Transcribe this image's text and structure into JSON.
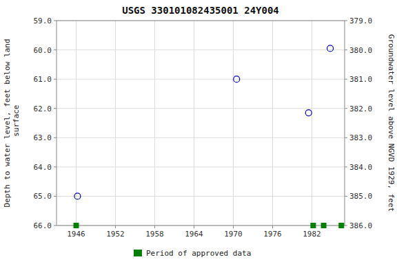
{
  "chart_data": {
    "type": "scatter",
    "title": "USGS 330101082435001 24Y004",
    "ylabel": "Depth to water level, feet below land\n surface",
    "y2label": "Groundwater level above NGVD 1929, feet",
    "xlim": [
      1943,
      1987
    ],
    "xticks": [
      1946,
      1952,
      1958,
      1964,
      1970,
      1976,
      1982
    ],
    "ylim": [
      66.0,
      59.0
    ],
    "yticks": [
      {
        "value": 59.0,
        "label": "59.0"
      },
      {
        "value": 60.0,
        "label": "60.0"
      },
      {
        "value": 61.0,
        "label": "61.0"
      },
      {
        "value": 62.0,
        "label": "62.0"
      },
      {
        "value": 63.0,
        "label": "63.0"
      },
      {
        "value": 64.0,
        "label": "64.0"
      },
      {
        "value": 65.0,
        "label": "65.0"
      },
      {
        "value": 66.0,
        "label": "66.0"
      }
    ],
    "y2lim": [
      386.0,
      379.0
    ],
    "y2ticks": [
      {
        "value": 386.0,
        "label": "386.0"
      },
      {
        "value": 385.0,
        "label": "385.0"
      },
      {
        "value": 384.0,
        "label": "384.0"
      },
      {
        "value": 383.0,
        "label": "383.0"
      },
      {
        "value": 382.0,
        "label": "382.0"
      },
      {
        "value": 381.0,
        "label": "381.0"
      },
      {
        "value": 380.0,
        "label": "380.0"
      },
      {
        "value": 379.0,
        "label": "379.0"
      }
    ],
    "grid": true,
    "legend": "bottom",
    "series": [
      {
        "x": [
          1946.2,
          1970.5,
          1981.5,
          1984.8
        ],
        "values": [
          65.0,
          61.0,
          62.15,
          59.95
        ],
        "color": "#0000cc",
        "marker": "open-circle"
      },
      {
        "name": "Period of approved data",
        "x": [
          1946.0,
          1982.2,
          1983.8,
          1986.5
        ],
        "values": [
          66.0,
          66.0,
          66.0,
          66.0
        ],
        "color": "#008000",
        "marker": "square"
      }
    ]
  }
}
